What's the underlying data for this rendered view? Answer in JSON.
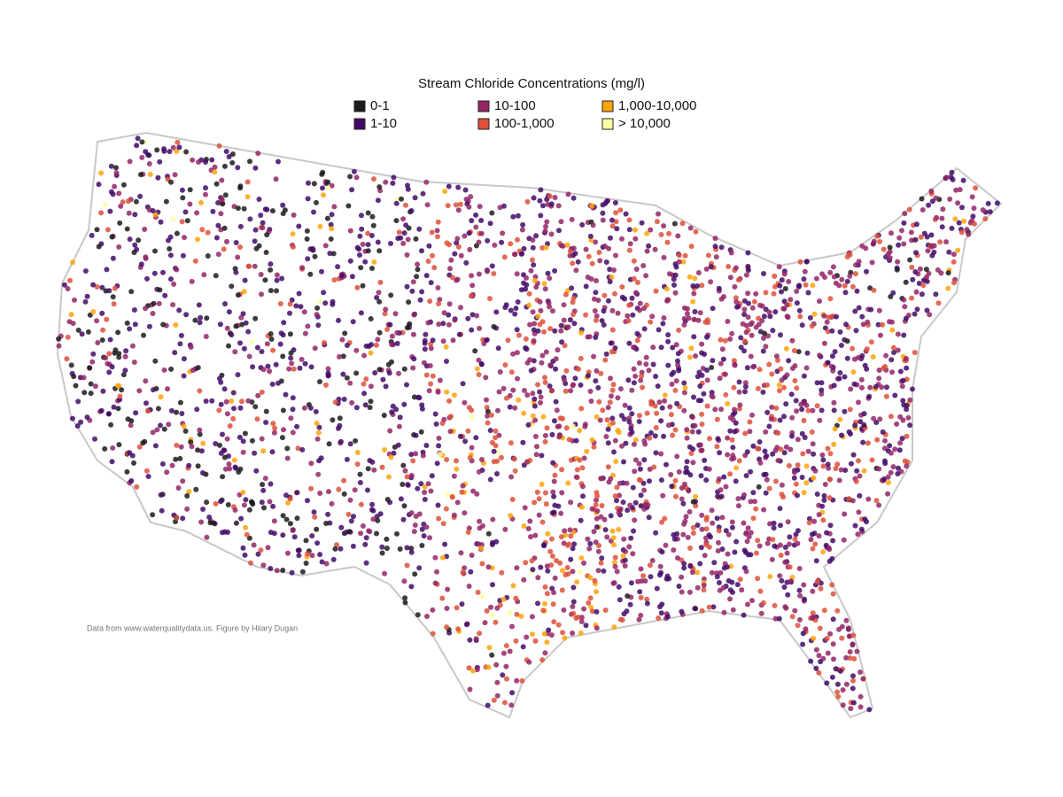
{
  "title": "Stream Chloride Concentrations (mg/l)",
  "legend": {
    "items": [
      {
        "label": "0-1",
        "color": "#1b1b1b"
      },
      {
        "label": "1-10",
        "color": "#420a68"
      },
      {
        "label": "10-100",
        "color": "#932667"
      },
      {
        "label": "100-1,000",
        "color": "#dd513a"
      },
      {
        "label": "1,000-10,000",
        "color": "#fca50a"
      },
      {
        "label": "> 10,000",
        "color": "#fcffa4"
      }
    ]
  },
  "credit": "Data from www.waterqualitydata.us. Figure by Hilary Dugan"
}
